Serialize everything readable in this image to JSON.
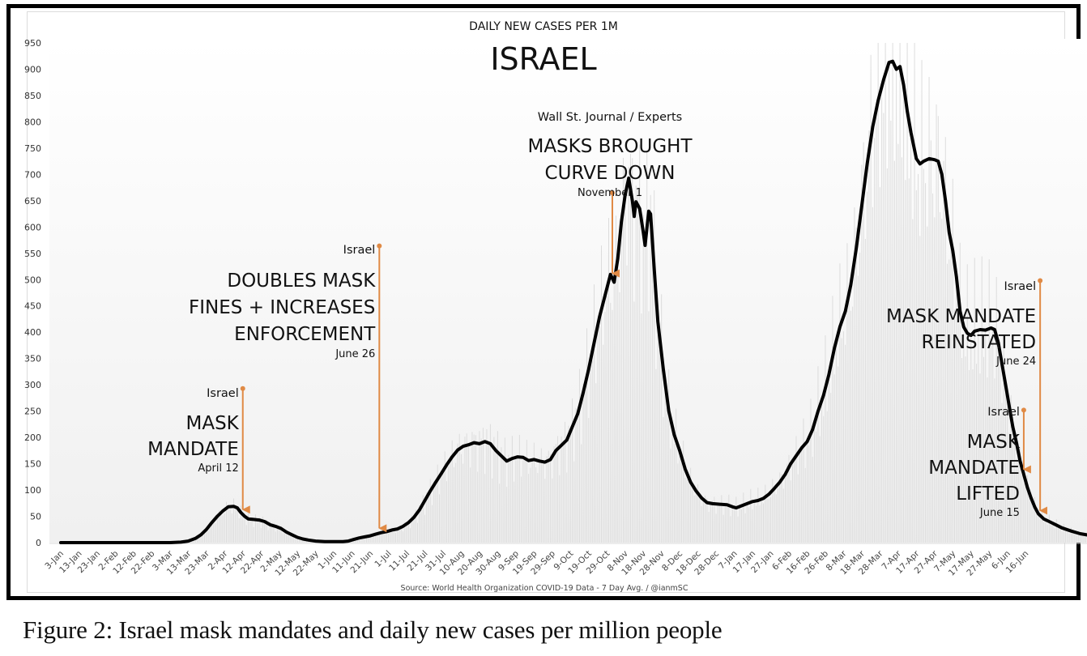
{
  "figure_caption": "Figure 2: Israel mask mandates and daily new cases per million people",
  "chart_data": {
    "type": "line",
    "subtitle": "DAILY NEW CASES PER 1M",
    "title": "ISRAEL",
    "source": "Source: World Health Organization COVID-19 Data - 7 Day Avg. / @ianmSC",
    "xlabel": "",
    "ylabel": "",
    "ylim": [
      0,
      950
    ],
    "yticks": [
      0,
      50,
      100,
      150,
      200,
      250,
      300,
      350,
      400,
      450,
      500,
      550,
      600,
      650,
      700,
      750,
      800,
      850,
      900,
      950
    ],
    "x_start_date": "2020-01-03",
    "x_tick_interval_days": 10,
    "xtick_labels": [
      "3-Jan",
      "13-Jan",
      "23-Jan",
      "2-Feb",
      "12-Feb",
      "22-Feb",
      "3-Mar",
      "13-Mar",
      "23-Mar",
      "2-Apr",
      "12-Apr",
      "22-Apr",
      "2-May",
      "12-May",
      "22-May",
      "1-Jun",
      "11-Jun",
      "21-Jun",
      "1-Jul",
      "11-Jul",
      "21-Jul",
      "31-Jul",
      "10-Aug",
      "20-Aug",
      "30-Aug",
      "9-Sep",
      "19-Sep",
      "29-Sep",
      "9-Oct",
      "19-Oct",
      "29-Oct",
      "8-Nov",
      "18-Nov",
      "28-Nov",
      "8-Dec",
      "18-Dec",
      "28-Dec",
      "7-Jan",
      "17-Jan",
      "27-Jan",
      "6-Feb",
      "16-Feb",
      "26-Feb",
      "8-Mar",
      "18-Mar",
      "28-Mar",
      "7-Apr",
      "17-Apr",
      "27-Apr",
      "7-May",
      "17-May",
      "27-May",
      "6-Jun",
      "16-Jun"
    ],
    "grid": false,
    "legend": "none",
    "series": [
      {
        "name": "7-day avg daily new cases per 1M",
        "color": "#000000",
        "points": [
          [
            0,
            0
          ],
          [
            60,
            0
          ],
          [
            66,
            1
          ],
          [
            70,
            3
          ],
          [
            74,
            8
          ],
          [
            77,
            15
          ],
          [
            80,
            25
          ],
          [
            83,
            38
          ],
          [
            86,
            50
          ],
          [
            89,
            60
          ],
          [
            92,
            68
          ],
          [
            95,
            69
          ],
          [
            97,
            66
          ],
          [
            99,
            57
          ],
          [
            101,
            50
          ],
          [
            103,
            45
          ],
          [
            106,
            44
          ],
          [
            109,
            43
          ],
          [
            112,
            40
          ],
          [
            115,
            34
          ],
          [
            118,
            31
          ],
          [
            121,
            27
          ],
          [
            124,
            20
          ],
          [
            127,
            15
          ],
          [
            130,
            10
          ],
          [
            133,
            7
          ],
          [
            136,
            5
          ],
          [
            140,
            3
          ],
          [
            145,
            2
          ],
          [
            150,
            2
          ],
          [
            155,
            2
          ],
          [
            158,
            3
          ],
          [
            161,
            6
          ],
          [
            164,
            9
          ],
          [
            167,
            11
          ],
          [
            170,
            13
          ],
          [
            173,
            16
          ],
          [
            176,
            19
          ],
          [
            179,
            21
          ],
          [
            182,
            24
          ],
          [
            185,
            26
          ],
          [
            188,
            31
          ],
          [
            191,
            38
          ],
          [
            194,
            48
          ],
          [
            197,
            62
          ],
          [
            200,
            80
          ],
          [
            203,
            98
          ],
          [
            206,
            115
          ],
          [
            209,
            131
          ],
          [
            212,
            148
          ],
          [
            215,
            163
          ],
          [
            218,
            176
          ],
          [
            221,
            183
          ],
          [
            224,
            186
          ],
          [
            227,
            190
          ],
          [
            230,
            188
          ],
          [
            233,
            192
          ],
          [
            236,
            188
          ],
          [
            239,
            175
          ],
          [
            242,
            165
          ],
          [
            245,
            155
          ],
          [
            248,
            160
          ],
          [
            251,
            163
          ],
          [
            254,
            162
          ],
          [
            257,
            156
          ],
          [
            260,
            158
          ],
          [
            263,
            155
          ],
          [
            266,
            153
          ],
          [
            269,
            158
          ],
          [
            272,
            175
          ],
          [
            275,
            185
          ],
          [
            278,
            195
          ],
          [
            281,
            220
          ],
          [
            284,
            245
          ],
          [
            287,
            285
          ],
          [
            290,
            330
          ],
          [
            293,
            380
          ],
          [
            296,
            430
          ],
          [
            299,
            470
          ],
          [
            302,
            510
          ],
          [
            304,
            495
          ],
          [
            306,
            540
          ],
          [
            308,
            610
          ],
          [
            310,
            660
          ],
          [
            312,
            693
          ],
          [
            314,
            650
          ],
          [
            315,
            620
          ],
          [
            316,
            648
          ],
          [
            318,
            635
          ],
          [
            320,
            590
          ],
          [
            321,
            565
          ],
          [
            323,
            630
          ],
          [
            324,
            625
          ],
          [
            326,
            520
          ],
          [
            328,
            420
          ],
          [
            331,
            330
          ],
          [
            334,
            250
          ],
          [
            337,
            205
          ],
          [
            340,
            175
          ],
          [
            343,
            140
          ],
          [
            346,
            115
          ],
          [
            349,
            98
          ],
          [
            352,
            85
          ],
          [
            355,
            76
          ],
          [
            358,
            74
          ],
          [
            362,
            73
          ],
          [
            366,
            72
          ],
          [
            369,
            68
          ],
          [
            371,
            66
          ],
          [
            374,
            70
          ],
          [
            377,
            74
          ],
          [
            380,
            78
          ],
          [
            383,
            80
          ],
          [
            386,
            84
          ],
          [
            389,
            92
          ],
          [
            392,
            103
          ],
          [
            395,
            115
          ],
          [
            398,
            130
          ],
          [
            401,
            150
          ],
          [
            404,
            165
          ],
          [
            407,
            180
          ],
          [
            410,
            192
          ],
          [
            413,
            215
          ],
          [
            416,
            250
          ],
          [
            419,
            280
          ],
          [
            422,
            320
          ],
          [
            425,
            370
          ],
          [
            428,
            410
          ],
          [
            431,
            440
          ],
          [
            434,
            490
          ],
          [
            437,
            560
          ],
          [
            440,
            640
          ],
          [
            443,
            720
          ],
          [
            446,
            790
          ],
          [
            449,
            840
          ],
          [
            452,
            880
          ],
          [
            455,
            913
          ],
          [
            457,
            915
          ],
          [
            459,
            900
          ],
          [
            461,
            905
          ],
          [
            463,
            870
          ],
          [
            465,
            820
          ],
          [
            467,
            780
          ],
          [
            470,
            730
          ],
          [
            472,
            720
          ],
          [
            474,
            725
          ],
          [
            477,
            730
          ],
          [
            480,
            728
          ],
          [
            482,
            725
          ],
          [
            484,
            700
          ],
          [
            486,
            650
          ],
          [
            488,
            590
          ],
          [
            490,
            555
          ],
          [
            492,
            505
          ],
          [
            494,
            440
          ],
          [
            496,
            410
          ],
          [
            498,
            398
          ],
          [
            500,
            394
          ],
          [
            502,
            402
          ],
          [
            505,
            405
          ],
          [
            508,
            404
          ],
          [
            511,
            408
          ],
          [
            513,
            405
          ],
          [
            515,
            380
          ],
          [
            517,
            340
          ],
          [
            519,
            300
          ],
          [
            521,
            260
          ],
          [
            523,
            220
          ],
          [
            525,
            190
          ],
          [
            527,
            155
          ],
          [
            529,
            130
          ],
          [
            531,
            105
          ],
          [
            533,
            85
          ],
          [
            535,
            68
          ],
          [
            537,
            55
          ],
          [
            540,
            45
          ],
          [
            543,
            40
          ],
          [
            546,
            35
          ],
          [
            550,
            28
          ],
          [
            555,
            22
          ],
          [
            560,
            17
          ],
          [
            565,
            14
          ],
          [
            570,
            12
          ],
          [
            580,
            9
          ],
          [
            590,
            6
          ],
          [
            600,
            5
          ],
          [
            610,
            4
          ],
          [
            620,
            4
          ],
          [
            630,
            3
          ],
          [
            640,
            3
          ],
          [
            645,
            4
          ],
          [
            648,
            7
          ],
          [
            650,
            11
          ]
        ]
      }
    ],
    "annotations": [
      {
        "source": "Israel",
        "headline": [
          "MASK",
          "MANDATE"
        ],
        "date_label": "April 12",
        "date": "2020-04-12",
        "marker_top_value": 293,
        "color": "#e08a45"
      },
      {
        "source": "Israel",
        "headline": [
          "DOUBLES MASK",
          "FINES + INCREASES",
          "ENFORCEMENT"
        ],
        "date_label": "June 26",
        "date": "2020-06-26",
        "marker_top_value": 564,
        "color": "#e08a45"
      },
      {
        "source": "Wall St. Journal / Experts",
        "headline": [
          "MASKS BROUGHT",
          "CURVE DOWN"
        ],
        "date_label": "November 1",
        "date": "2020-11-01",
        "marker_top_value": 665,
        "color": "#e08a45"
      },
      {
        "source": "Israel",
        "headline": [
          "MASK MANDATE",
          "REINSTATED"
        ],
        "date_label": "June 24",
        "date": "2021-06-24",
        "marker_top_value": 498,
        "color": "#e08a45"
      },
      {
        "source": "Israel",
        "headline": [
          "MASK",
          "MANDATE",
          "LIFTED"
        ],
        "date_label": "June 15",
        "date": "2021-06-15",
        "marker_top_value": 252,
        "color": "#e08a45"
      }
    ]
  }
}
